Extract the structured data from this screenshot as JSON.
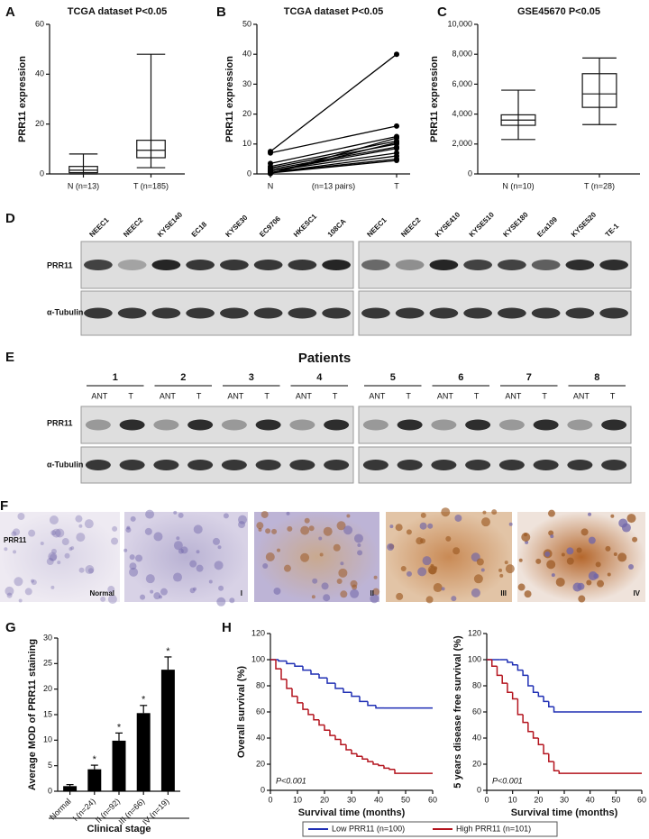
{
  "chart_data": [
    {
      "panel": "A",
      "type": "box",
      "title": "TCGA dataset P<0.05",
      "ylabel": "PRR11 expression",
      "categories": [
        "N (n=13)",
        "T (n=185)"
      ],
      "boxes": [
        {
          "min": 0,
          "q1": 0.5,
          "median": 1.5,
          "q3": 3,
          "max": 8
        },
        {
          "min": 2.5,
          "q1": 6.5,
          "median": 9.5,
          "q3": 13.5,
          "max": 48
        }
      ],
      "ylim": [
        0,
        60
      ],
      "yticks": [
        0,
        20,
        40,
        60
      ]
    },
    {
      "panel": "B",
      "type": "paired",
      "title": "TCGA dataset P<0.05",
      "ylabel": "PRR11 expression",
      "categories": [
        "N",
        "T"
      ],
      "annotation": "(n=13 pairs)",
      "pairs": [
        [
          7.5,
          40
        ],
        [
          7,
          16
        ],
        [
          3.5,
          12.5
        ],
        [
          2.5,
          11
        ],
        [
          2,
          10
        ],
        [
          1.5,
          9
        ],
        [
          1,
          8.5
        ],
        [
          1,
          7
        ],
        [
          0.5,
          6
        ],
        [
          0.5,
          5
        ],
        [
          0.3,
          4.5
        ],
        [
          0.2,
          10.5
        ],
        [
          0.1,
          12
        ]
      ],
      "ylim": [
        0,
        50
      ],
      "yticks": [
        0,
        10,
        20,
        30,
        40,
        50
      ]
    },
    {
      "panel": "C",
      "type": "box",
      "title": "GSE45670 P<0.05",
      "ylabel": "PRR11 expression",
      "categories": [
        "N (n=10)",
        "T (n=28)"
      ],
      "boxes": [
        {
          "min": 2300,
          "q1": 3250,
          "median": 3600,
          "q3": 3950,
          "max": 5600
        },
        {
          "min": 3300,
          "q1": 4450,
          "median": 5350,
          "q3": 6700,
          "max": 7750
        }
      ],
      "ylim": [
        0,
        10000
      ],
      "yticks": [
        0,
        {
          "value": 2000,
          "label": "2,000"
        },
        {
          "value": 4000,
          "label": "4,000"
        },
        {
          "value": 6000,
          "label": "6,000"
        },
        {
          "value": 8000,
          "label": "8,000"
        },
        {
          "value": 10000,
          "label": "10,000"
        }
      ]
    },
    {
      "panel": "G",
      "type": "bar",
      "ylabel": "Average MOD of PRR11 staining",
      "xlabel": "Clinical stage",
      "categories": [
        "Normal",
        "I (n=24)",
        "II (n=92)",
        "III (n=66)",
        "IV (n=19)"
      ],
      "values": [
        1,
        4.3,
        9.9,
        15.3,
        23.8
      ],
      "errors": [
        0.3,
        0.8,
        1.5,
        1.5,
        2.5
      ],
      "annotations": [
        null,
        "*",
        "*",
        "*",
        "*"
      ],
      "color": "#000000",
      "ylim": [
        0,
        30
      ],
      "yticks": [
        0,
        5,
        10,
        15,
        20,
        25,
        30
      ]
    },
    {
      "panel": "H",
      "type": "line",
      "step": true,
      "ylabel": "Overall survival (%)",
      "xlabel": "Survival time (months)",
      "annotation": "P<0.001",
      "legend": "bottom",
      "xlim": [
        0,
        60
      ],
      "xticks": [
        0,
        10,
        20,
        30,
        40,
        50,
        60
      ],
      "ylim": [
        0,
        120
      ],
      "yticks": [
        0,
        20,
        40,
        60,
        80,
        100,
        120
      ],
      "series": [
        {
          "name": "Low PRR11 (n=100)",
          "color": "#1f2fb4",
          "x": [
            0,
            3,
            6,
            9,
            12,
            15,
            18,
            21,
            24,
            27,
            30,
            33,
            36,
            39,
            42,
            45,
            50,
            55,
            60
          ],
          "values": [
            100,
            99,
            97,
            95,
            92,
            89,
            86,
            82,
            78,
            75,
            72,
            68,
            65,
            63,
            63,
            63,
            63,
            63,
            63
          ]
        },
        {
          "name": "High PRR11 (n=101)",
          "color": "#b4141e",
          "x": [
            0,
            2,
            4,
            6,
            8,
            10,
            12,
            14,
            16,
            18,
            20,
            22,
            24,
            26,
            28,
            30,
            32,
            34,
            36,
            38,
            40,
            42,
            44,
            46,
            50,
            55,
            60
          ],
          "values": [
            100,
            93,
            85,
            78,
            72,
            67,
            62,
            58,
            54,
            50,
            46,
            42,
            39,
            35,
            31,
            28,
            26,
            24,
            22,
            20,
            19,
            17,
            16,
            13,
            13,
            13,
            13
          ]
        }
      ]
    },
    {
      "type": "line",
      "step": true,
      "ylabel": "5 years disease free survival (%)",
      "xlabel": "Survival time (months)",
      "annotation": "P<0.001",
      "xlim": [
        0,
        60
      ],
      "xticks": [
        0,
        10,
        20,
        30,
        40,
        50,
        60
      ],
      "ylim": [
        0,
        120
      ],
      "yticks": [
        0,
        20,
        40,
        60,
        80,
        100,
        120
      ],
      "series": [
        {
          "color": "#1f2fb4",
          "x": [
            0,
            5,
            8,
            10,
            12,
            14,
            16,
            18,
            20,
            22,
            24,
            26,
            60
          ],
          "values": [
            100,
            100,
            98,
            96,
            92,
            88,
            80,
            75,
            72,
            68,
            64,
            60,
            60
          ]
        },
        {
          "color": "#b4141e",
          "x": [
            0,
            2,
            4,
            6,
            8,
            10,
            12,
            14,
            16,
            18,
            20,
            22,
            24,
            26,
            28,
            60
          ],
          "values": [
            100,
            95,
            88,
            82,
            75,
            70,
            58,
            52,
            45,
            40,
            35,
            28,
            22,
            15,
            13,
            13
          ]
        }
      ]
    }
  ],
  "blots": {
    "panel": "D",
    "lanes_left": [
      "NEEC1",
      "NEEC2",
      "KYSE140",
      "EC18",
      "KYSE30",
      "EC9706",
      "HKESC1",
      "108CA"
    ],
    "lanes_right": [
      "NEEC1",
      "NEEC2",
      "KYSE410",
      "KYSE510",
      "KYSE180",
      "Eca109",
      "KYSE520",
      "TE-1"
    ],
    "rows": [
      "PRR11",
      "α-Tubulin"
    ]
  },
  "patients_blot": {
    "panel": "E",
    "title": "Patients",
    "patients": [
      "1",
      "2",
      "3",
      "4",
      "5",
      "6",
      "7",
      "8"
    ],
    "lanes": [
      "ANT",
      "T"
    ],
    "rows": [
      "PRR11",
      "α-Tubulin"
    ]
  },
  "histology": {
    "panel": "F",
    "row_label": "PRR11",
    "labels": [
      "Normal",
      "I",
      "II",
      "III",
      "IV"
    ]
  }
}
